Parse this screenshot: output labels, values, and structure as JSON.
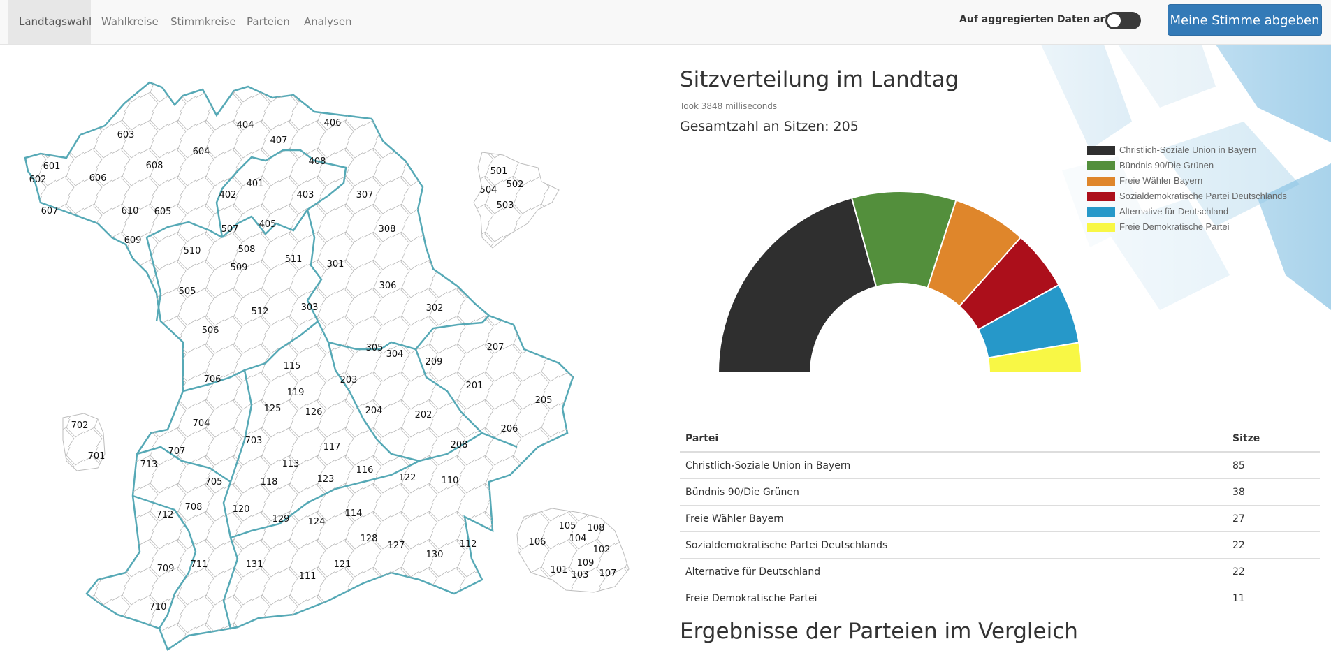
{
  "nav": {
    "items": [
      "Landtagswahl",
      "Wahlkreise",
      "Stimmkreise",
      "Parteien",
      "Analysen"
    ],
    "toggle_label": "Auf aggregierten Daten arbeiten",
    "vote_button": "Meine Stimme abgeben"
  },
  "map": {
    "district_labels": [
      "603",
      "604",
      "601",
      "602",
      "606",
      "608",
      "607",
      "610",
      "605",
      "609",
      "404",
      "407",
      "406",
      "408",
      "401",
      "402",
      "403",
      "307",
      "405",
      "507",
      "510",
      "508",
      "509",
      "511",
      "301",
      "308",
      "306",
      "505",
      "512",
      "303",
      "302",
      "506",
      "305",
      "304",
      "209",
      "207",
      "115",
      "203",
      "706",
      "119",
      "201",
      "205",
      "125",
      "126",
      "204",
      "202",
      "702",
      "704",
      "703",
      "206",
      "701",
      "117",
      "208",
      "713",
      "707",
      "113",
      "116",
      "122",
      "110",
      "705",
      "118",
      "123",
      "712",
      "708",
      "120",
      "129",
      "114",
      "124",
      "112",
      "128",
      "127",
      "709",
      "711",
      "131",
      "121",
      "130",
      "111",
      "710",
      "501",
      "502",
      "504",
      "503",
      "105",
      "108",
      "104",
      "106",
      "102",
      "109",
      "101",
      "103",
      "107"
    ]
  },
  "panel": {
    "title": "Sitzverteilung im Landtag",
    "took": "Took 3848 milliseconds",
    "total": "Gesamtzahl an Sitzen: 205"
  },
  "chart_data": {
    "type": "pie",
    "subtype": "semicircle-donut",
    "series": [
      {
        "name": "Christlich-Soziale Union in Bayern",
        "value": 85,
        "color": "#2f2f2f"
      },
      {
        "name": "Bündnis 90/Die Grünen",
        "value": 38,
        "color": "#538f3c"
      },
      {
        "name": "Freie Wähler Bayern",
        "value": 27,
        "color": "#df862b"
      },
      {
        "name": "Sozialdemokratische Partei Deutschlands",
        "value": 22,
        "color": "#ac0f1b"
      },
      {
        "name": "Alternative für Deutschland",
        "value": 22,
        "color": "#2698c9"
      },
      {
        "name": "Freie Demokratische Partei",
        "value": 11,
        "color": "#f8f745"
      }
    ],
    "legend_position": "top-right"
  },
  "table": {
    "headers": [
      "Partei",
      "Sitze"
    ],
    "rows": [
      [
        "Christlich-Soziale Union in Bayern",
        "85"
      ],
      [
        "Bündnis 90/Die Grünen",
        "38"
      ],
      [
        "Freie Wähler Bayern",
        "27"
      ],
      [
        "Sozialdemokratische Partei Deutschlands",
        "22"
      ],
      [
        "Alternative für Deutschland",
        "22"
      ],
      [
        "Freie Demokratische Partei",
        "11"
      ]
    ]
  },
  "section_title": "Ergebnisse der Parteien im Vergleich"
}
